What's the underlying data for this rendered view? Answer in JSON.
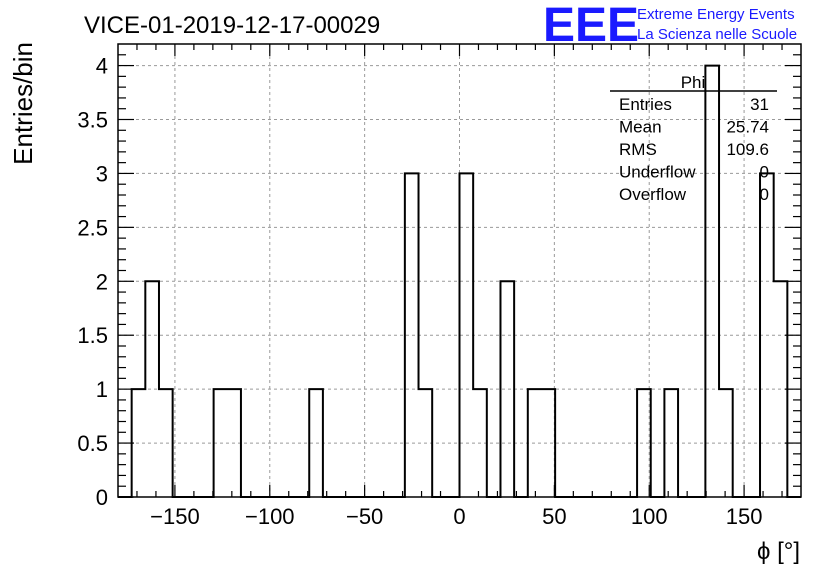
{
  "title": "VICE-01-2019-12-17-00029",
  "logo": {
    "text": "EEE",
    "line1": "Extreme Energy Events",
    "line2": "La Scienza nelle Scuole",
    "color": "#1a1aff"
  },
  "stats": {
    "name": "Phi",
    "rows": [
      {
        "label": "Entries",
        "value": "31"
      },
      {
        "label": "Mean",
        "value": "25.74"
      },
      {
        "label": "RMS",
        "value": "109.6"
      },
      {
        "label": "Underflow",
        "value": "0"
      },
      {
        "label": "Overflow",
        "value": "0"
      }
    ]
  },
  "chart_data": {
    "type": "bar",
    "title": "VICE-01-2019-12-17-00029",
    "xlabel": "ϕ [°]",
    "ylabel": "Entries/bin",
    "xlim": [
      -180,
      180
    ],
    "ylim": [
      0,
      4.2
    ],
    "bin_width": 7.2,
    "bin_centers": [
      -176.4,
      -169.2,
      -162,
      -154.8,
      -147.6,
      -140.4,
      -133.2,
      -126,
      -118.8,
      -111.6,
      -104.4,
      -97.2,
      -90,
      -82.8,
      -75.6,
      -68.4,
      -61.2,
      -54,
      -46.8,
      -39.6,
      -32.4,
      -25.2,
      -18,
      -10.8,
      -3.6,
      3.6,
      10.8,
      18,
      25.2,
      32.4,
      39.6,
      46.8,
      54,
      61.2,
      68.4,
      75.6,
      82.8,
      90,
      97.2,
      104.4,
      111.6,
      118.8,
      126,
      133.2,
      140.4,
      147.6,
      154.8,
      162,
      169.2,
      176.4
    ],
    "values": [
      0,
      1,
      2,
      1,
      0,
      0,
      0,
      1,
      1,
      0,
      0,
      0,
      0,
      0,
      1,
      0,
      0,
      0,
      0,
      0,
      0,
      3,
      1,
      0,
      0,
      3,
      1,
      0,
      2,
      0,
      1,
      1,
      0,
      0,
      0,
      0,
      0,
      0,
      1,
      0,
      1,
      0,
      0,
      4,
      1,
      0,
      0,
      3,
      2,
      0
    ],
    "xticks": [
      -150,
      -100,
      -50,
      0,
      50,
      100,
      150
    ],
    "xtick_labels": [
      "−150",
      "−100",
      "−50",
      "0",
      "50",
      "100",
      "150"
    ],
    "yticks": [
      0,
      0.5,
      1,
      1.5,
      2,
      2.5,
      3,
      3.5,
      4
    ],
    "ytick_labels": [
      "0",
      "0.5",
      "1",
      "1.5",
      "2",
      "2.5",
      "3",
      "3.5",
      "4"
    ],
    "grid": true,
    "legend": "top-right"
  }
}
